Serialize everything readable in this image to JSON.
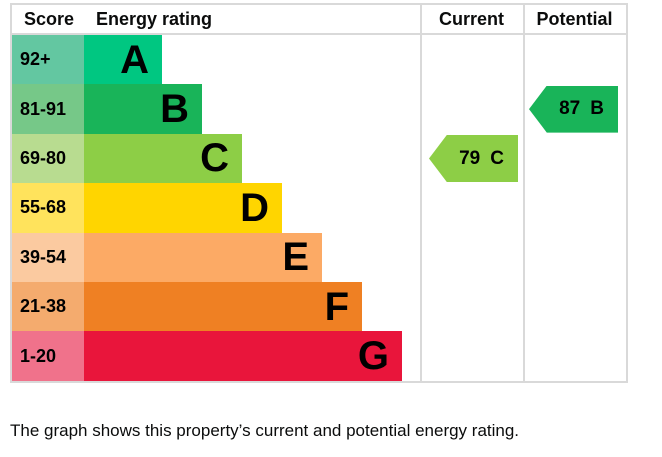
{
  "chart": {
    "headers": {
      "score": "Score",
      "energy_rating": "Energy rating",
      "current": "Current",
      "potential": "Potential"
    },
    "bands": [
      {
        "letter": "A",
        "score": "92+",
        "color": "#00c781",
        "tint": "#63c7a1"
      },
      {
        "letter": "B",
        "score": "81-91",
        "color": "#19b459",
        "tint": "#76c888"
      },
      {
        "letter": "C",
        "score": "69-80",
        "color": "#8dce46",
        "tint": "#b8dc90"
      },
      {
        "letter": "D",
        "score": "55-68",
        "color": "#ffd500",
        "tint": "#ffe35c"
      },
      {
        "letter": "E",
        "score": "39-54",
        "color": "#fcaa65",
        "tint": "#fbcaa0"
      },
      {
        "letter": "F",
        "score": "21-38",
        "color": "#ef8023",
        "tint": "#f4ab6e"
      },
      {
        "letter": "G",
        "score": "1-20",
        "color": "#e9153b",
        "tint": "#f0728b"
      }
    ],
    "current": {
      "value": "79",
      "letter": "C",
      "band_index": 2,
      "color": "#8dce46"
    },
    "potential": {
      "value": "87",
      "letter": "B",
      "band_index": 1,
      "color": "#19b459"
    }
  },
  "chart_data": {
    "type": "bar",
    "title": "Energy rating",
    "columns": [
      "Score",
      "Energy rating",
      "Current",
      "Potential"
    ],
    "categories": [
      "A",
      "B",
      "C",
      "D",
      "E",
      "F",
      "G"
    ],
    "score_ranges": [
      "92+",
      "81-91",
      "69-80",
      "55-68",
      "39-54",
      "21-38",
      "1-20"
    ],
    "band_colors": [
      "#00c781",
      "#19b459",
      "#8dce46",
      "#ffd500",
      "#fcaa65",
      "#ef8023",
      "#e9153b"
    ],
    "current_rating": {
      "score": 79,
      "band": "C"
    },
    "potential_rating": {
      "score": 87,
      "band": "B"
    }
  },
  "caption": "The graph shows this property’s current and potential energy rating."
}
